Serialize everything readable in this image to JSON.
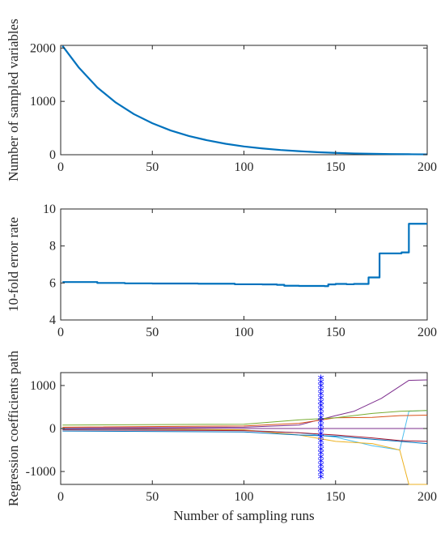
{
  "chart_data": [
    {
      "type": "line",
      "xlabel": "",
      "ylabel": "Number of sampled variables",
      "xlim": [
        0,
        200
      ],
      "ylim": [
        0,
        2050
      ],
      "xticks": [
        0,
        50,
        100,
        150,
        200
      ],
      "yticks": [
        0,
        1000,
        2000
      ],
      "series": [
        {
          "color": "#0072BD",
          "x": [
            1,
            10,
            20,
            30,
            40,
            50,
            60,
            70,
            80,
            90,
            100,
            110,
            120,
            130,
            140,
            150,
            160,
            170,
            180,
            190,
            200
          ],
          "y": [
            2040,
            1630,
            1260,
            980,
            760,
            590,
            455,
            350,
            270,
            205,
            155,
            118,
            88,
            66,
            48,
            34,
            24,
            17,
            12,
            9,
            7
          ]
        }
      ]
    },
    {
      "type": "line",
      "xlabel": "",
      "ylabel": "10-fold error rate",
      "xlim": [
        0,
        200
      ],
      "ylim": [
        4,
        10
      ],
      "xticks": [
        0,
        50,
        100,
        150,
        200
      ],
      "yticks": [
        4,
        6,
        8,
        10
      ],
      "series": [
        {
          "color": "#0072BD",
          "step": true,
          "x": [
            1,
            20,
            35,
            50,
            75,
            95,
            110,
            118,
            122,
            130,
            144,
            146,
            150,
            156,
            160,
            168,
            172,
            174,
            180,
            186,
            190,
            200
          ],
          "y": [
            6.05,
            6.0,
            5.98,
            5.97,
            5.96,
            5.93,
            5.92,
            5.9,
            5.85,
            5.84,
            5.83,
            5.92,
            5.95,
            5.93,
            5.95,
            6.3,
            6.3,
            7.6,
            7.6,
            7.65,
            9.2,
            9.2
          ]
        }
      ]
    },
    {
      "type": "line",
      "xlabel": "Number of sampling runs",
      "ylabel": "Regression coefficients path",
      "xlim": [
        0,
        200
      ],
      "ylim": [
        -1300,
        1300
      ],
      "xticks": [
        0,
        50,
        100,
        150,
        200
      ],
      "yticks": [
        -1000,
        0,
        1000
      ],
      "marker": {
        "x": 142,
        "y_from": -1150,
        "y_to": 1150,
        "color": "#0000FF",
        "symbol": "*"
      },
      "series": [
        {
          "color": "#7E2F8E",
          "x": [
            1,
            100,
            130,
            150,
            160,
            175,
            190,
            200
          ],
          "y": [
            10,
            30,
            80,
            300,
            400,
            700,
            1120,
            1130
          ]
        },
        {
          "color": "#4DBEEE",
          "x": [
            1,
            100,
            130,
            150,
            170,
            185,
            190,
            200
          ],
          "y": [
            -20,
            -40,
            -100,
            -200,
            -400,
            -500,
            400,
            420
          ]
        },
        {
          "color": "#EDB120",
          "x": [
            1,
            100,
            130,
            150,
            170,
            185,
            190,
            200
          ],
          "y": [
            5,
            -30,
            -150,
            -300,
            -350,
            -500,
            -1300,
            -1300
          ]
        },
        {
          "color": "#D95319",
          "x": [
            1,
            100,
            130,
            150,
            170,
            185,
            200
          ],
          "y": [
            30,
            60,
            120,
            250,
            260,
            300,
            310
          ]
        },
        {
          "color": "#77AC30",
          "x": [
            1,
            100,
            130,
            150,
            170,
            185,
            200
          ],
          "y": [
            80,
            100,
            200,
            250,
            350,
            400,
            420
          ]
        },
        {
          "color": "#0072BD",
          "x": [
            1,
            100,
            130,
            150,
            170,
            185,
            200
          ],
          "y": [
            -60,
            -80,
            -150,
            -180,
            -250,
            -300,
            -350
          ]
        },
        {
          "color": "#A2142F",
          "x": [
            1,
            100,
            130,
            150,
            170,
            185,
            200
          ],
          "y": [
            -30,
            -50,
            -100,
            -150,
            -220,
            -280,
            -300
          ]
        },
        {
          "color": "#7E2F8E",
          "x": [
            1,
            100,
            130,
            150,
            200
          ],
          "y": [
            0,
            0,
            0,
            0,
            0
          ]
        }
      ]
    }
  ]
}
